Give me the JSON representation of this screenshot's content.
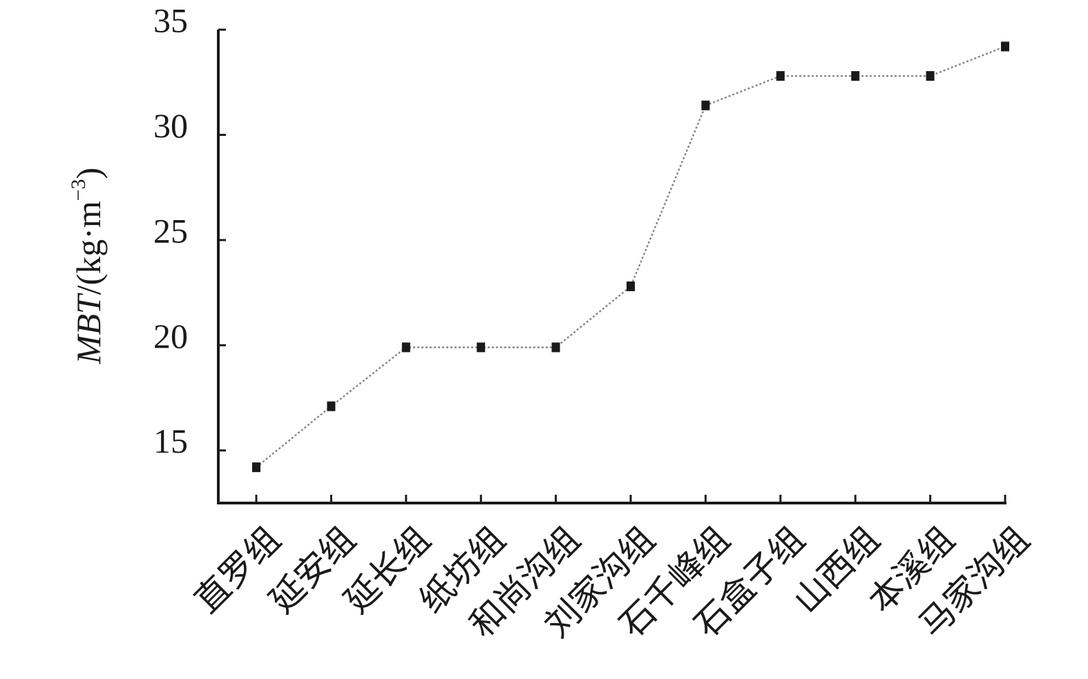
{
  "chart_data": {
    "type": "line",
    "ylabel": [
      "MBT",
      "/(kg·m",
      "−3",
      ")"
    ],
    "categories": [
      "直罗组",
      "延安组",
      "延长组",
      "纸坊组",
      "和尚沟组",
      "刘家沟组",
      "石千峰组",
      "石盒子组",
      "山西组",
      "本溪组",
      "马家沟组"
    ],
    "series": [
      {
        "color": "#1a1a1a",
        "values": [
          14.2,
          17.1,
          19.9,
          19.9,
          19.9,
          22.8,
          31.4,
          32.8,
          32.8,
          32.8,
          34.2
        ]
      }
    ],
    "ylim": [
      12.5,
      35
    ],
    "yticks": [
      15,
      20,
      25,
      30,
      35
    ],
    "grid": false
  }
}
